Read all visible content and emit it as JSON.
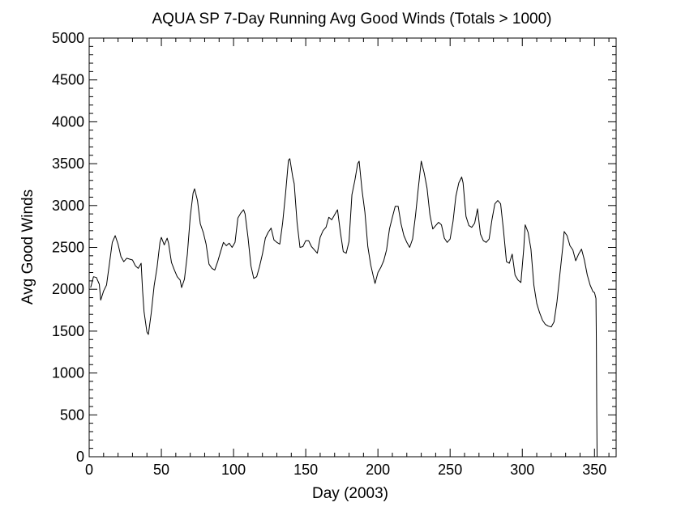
{
  "chart_data": {
    "type": "line",
    "title": "AQUA SP 7-Day Running Avg Good Winds (Totals > 1000)",
    "xlabel": "Day (2003)",
    "ylabel": "Avg Good Winds",
    "xlim": [
      0,
      365
    ],
    "ylim": [
      0,
      5000
    ],
    "x_ticks": [
      0,
      50,
      100,
      150,
      200,
      250,
      300,
      350
    ],
    "y_ticks": [
      0,
      500,
      1000,
      1500,
      2000,
      2500,
      3000,
      3500,
      4000,
      4500,
      5000
    ],
    "grid": false,
    "line_color": "#000000",
    "series": [
      {
        "points": [
          [
            1,
            2020
          ],
          [
            3,
            2150
          ],
          [
            5,
            2140
          ],
          [
            7,
            2060
          ],
          [
            8,
            1870
          ],
          [
            10,
            1980
          ],
          [
            12,
            2050
          ],
          [
            14,
            2300
          ],
          [
            16,
            2560
          ],
          [
            18,
            2640
          ],
          [
            20,
            2540
          ],
          [
            22,
            2390
          ],
          [
            24,
            2330
          ],
          [
            26,
            2370
          ],
          [
            28,
            2360
          ],
          [
            30,
            2350
          ],
          [
            32,
            2280
          ],
          [
            34,
            2250
          ],
          [
            36,
            2310
          ],
          [
            37,
            1980
          ],
          [
            38,
            1730
          ],
          [
            40,
            1490
          ],
          [
            41,
            1460
          ],
          [
            43,
            1720
          ],
          [
            45,
            2040
          ],
          [
            47,
            2260
          ],
          [
            49,
            2560
          ],
          [
            50,
            2620
          ],
          [
            52,
            2530
          ],
          [
            54,
            2610
          ],
          [
            55,
            2550
          ],
          [
            57,
            2320
          ],
          [
            59,
            2230
          ],
          [
            61,
            2150
          ],
          [
            63,
            2110
          ],
          [
            64,
            2020
          ],
          [
            66,
            2120
          ],
          [
            68,
            2420
          ],
          [
            70,
            2870
          ],
          [
            72,
            3150
          ],
          [
            73,
            3200
          ],
          [
            75,
            3060
          ],
          [
            77,
            2780
          ],
          [
            79,
            2680
          ],
          [
            81,
            2540
          ],
          [
            83,
            2300
          ],
          [
            85,
            2250
          ],
          [
            87,
            2230
          ],
          [
            89,
            2330
          ],
          [
            91,
            2450
          ],
          [
            93,
            2560
          ],
          [
            95,
            2520
          ],
          [
            97,
            2550
          ],
          [
            99,
            2500
          ],
          [
            101,
            2560
          ],
          [
            103,
            2850
          ],
          [
            105,
            2910
          ],
          [
            107,
            2950
          ],
          [
            108,
            2900
          ],
          [
            110,
            2620
          ],
          [
            112,
            2280
          ],
          [
            114,
            2130
          ],
          [
            116,
            2150
          ],
          [
            118,
            2270
          ],
          [
            120,
            2420
          ],
          [
            122,
            2610
          ],
          [
            124,
            2680
          ],
          [
            126,
            2730
          ],
          [
            128,
            2590
          ],
          [
            130,
            2560
          ],
          [
            132,
            2540
          ],
          [
            134,
            2790
          ],
          [
            136,
            3140
          ],
          [
            138,
            3540
          ],
          [
            139,
            3560
          ],
          [
            141,
            3340
          ],
          [
            142,
            3260
          ],
          [
            144,
            2800
          ],
          [
            146,
            2500
          ],
          [
            148,
            2510
          ],
          [
            150,
            2580
          ],
          [
            152,
            2580
          ],
          [
            154,
            2510
          ],
          [
            156,
            2470
          ],
          [
            158,
            2430
          ],
          [
            160,
            2620
          ],
          [
            162,
            2700
          ],
          [
            164,
            2740
          ],
          [
            166,
            2860
          ],
          [
            168,
            2830
          ],
          [
            170,
            2890
          ],
          [
            172,
            2950
          ],
          [
            174,
            2680
          ],
          [
            176,
            2450
          ],
          [
            178,
            2430
          ],
          [
            180,
            2570
          ],
          [
            182,
            3130
          ],
          [
            184,
            3300
          ],
          [
            186,
            3500
          ],
          [
            187,
            3530
          ],
          [
            189,
            3180
          ],
          [
            191,
            2920
          ],
          [
            193,
            2510
          ],
          [
            195,
            2290
          ],
          [
            197,
            2140
          ],
          [
            198,
            2070
          ],
          [
            200,
            2200
          ],
          [
            202,
            2260
          ],
          [
            204,
            2340
          ],
          [
            206,
            2470
          ],
          [
            208,
            2720
          ],
          [
            210,
            2860
          ],
          [
            212,
            2990
          ],
          [
            214,
            2990
          ],
          [
            216,
            2780
          ],
          [
            218,
            2640
          ],
          [
            220,
            2560
          ],
          [
            222,
            2500
          ],
          [
            224,
            2600
          ],
          [
            226,
            2880
          ],
          [
            228,
            3210
          ],
          [
            230,
            3530
          ],
          [
            232,
            3390
          ],
          [
            234,
            3210
          ],
          [
            236,
            2890
          ],
          [
            238,
            2720
          ],
          [
            240,
            2760
          ],
          [
            242,
            2800
          ],
          [
            244,
            2770
          ],
          [
            246,
            2610
          ],
          [
            248,
            2560
          ],
          [
            250,
            2600
          ],
          [
            252,
            2810
          ],
          [
            254,
            3110
          ],
          [
            256,
            3270
          ],
          [
            258,
            3340
          ],
          [
            259,
            3270
          ],
          [
            261,
            2870
          ],
          [
            263,
            2760
          ],
          [
            265,
            2740
          ],
          [
            267,
            2790
          ],
          [
            269,
            2960
          ],
          [
            271,
            2660
          ],
          [
            273,
            2580
          ],
          [
            275,
            2560
          ],
          [
            277,
            2600
          ],
          [
            279,
            2830
          ],
          [
            281,
            3020
          ],
          [
            283,
            3060
          ],
          [
            285,
            3020
          ],
          [
            287,
            2700
          ],
          [
            289,
            2330
          ],
          [
            291,
            2310
          ],
          [
            293,
            2420
          ],
          [
            295,
            2170
          ],
          [
            297,
            2110
          ],
          [
            299,
            2080
          ],
          [
            301,
            2480
          ],
          [
            302,
            2770
          ],
          [
            304,
            2680
          ],
          [
            306,
            2480
          ],
          [
            308,
            2050
          ],
          [
            310,
            1830
          ],
          [
            312,
            1720
          ],
          [
            314,
            1630
          ],
          [
            316,
            1580
          ],
          [
            318,
            1560
          ],
          [
            320,
            1550
          ],
          [
            322,
            1610
          ],
          [
            324,
            1850
          ],
          [
            326,
            2170
          ],
          [
            328,
            2500
          ],
          [
            329,
            2690
          ],
          [
            331,
            2640
          ],
          [
            333,
            2520
          ],
          [
            335,
            2470
          ],
          [
            337,
            2340
          ],
          [
            339,
            2420
          ],
          [
            341,
            2480
          ],
          [
            343,
            2350
          ],
          [
            345,
            2170
          ],
          [
            347,
            2050
          ],
          [
            349,
            1970
          ],
          [
            350,
            1960
          ],
          [
            351,
            1890
          ],
          [
            351.3,
            1380
          ],
          [
            351.6,
            500
          ],
          [
            351.8,
            0
          ]
        ]
      }
    ]
  }
}
